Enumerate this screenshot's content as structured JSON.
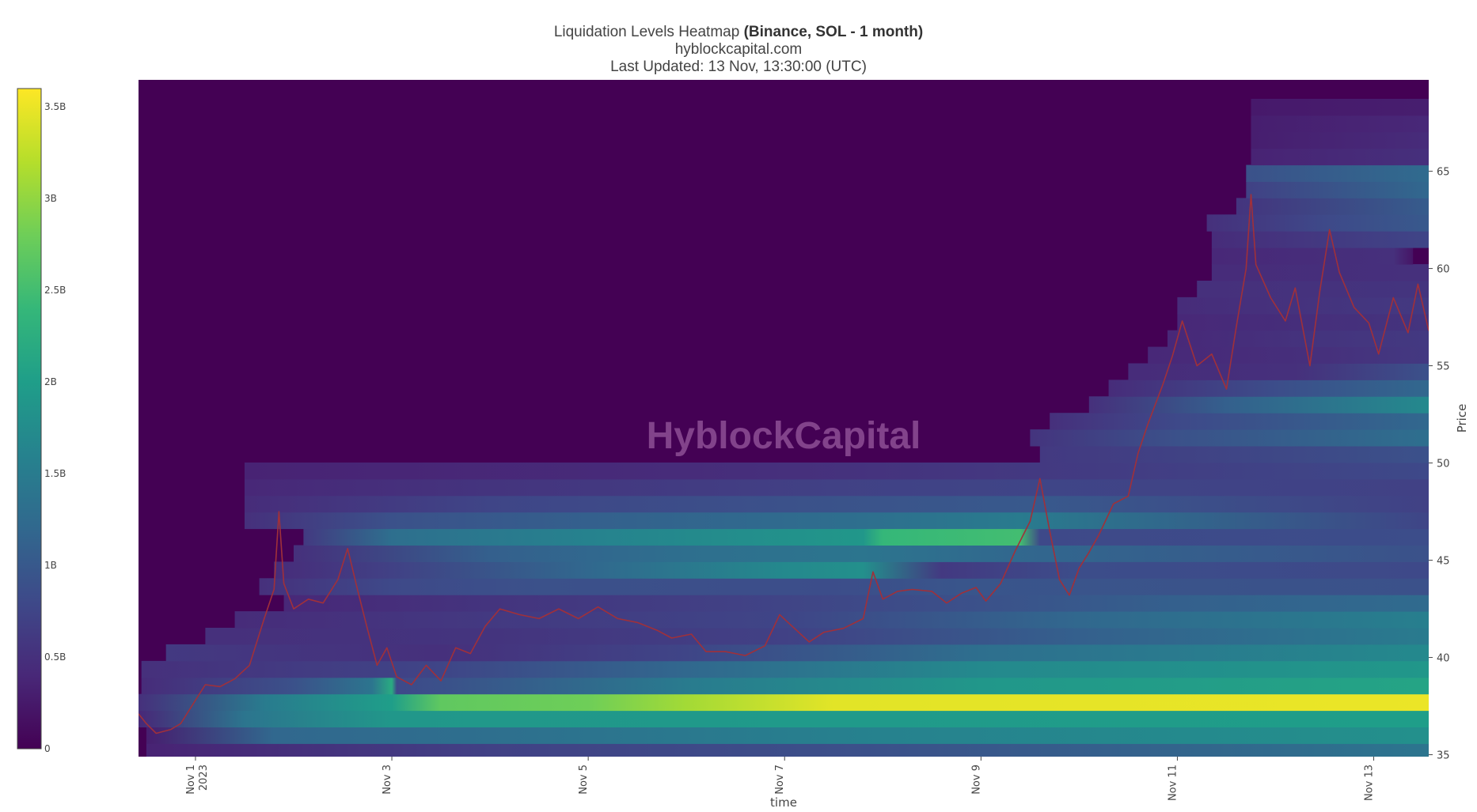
{
  "header": {
    "title_prefix": "Liquidation Levels Heatmap ",
    "title_bold": "(Binance, SOL - 1 month)",
    "site": "hyblockcapital.com",
    "updated": "Last Updated: 13 Nov, 13:30:00 (UTC)"
  },
  "watermark": "HyblockCapital",
  "colorscale": [
    "#440154",
    "#482878",
    "#3e4989",
    "#31688e",
    "#26828e",
    "#1f9e89",
    "#35b779",
    "#6ece58",
    "#b5de2b",
    "#fde725"
  ],
  "chart_data": {
    "type": "heatmap",
    "xlabel": "time",
    "ylabel": "Price",
    "x_ticks": [
      {
        "label": "Nov 1",
        "sub": "2023",
        "x": 1.0
      },
      {
        "label": "Nov 3",
        "sub": "",
        "x": 3.0
      },
      {
        "label": "Nov 5",
        "sub": "",
        "x": 5.0
      },
      {
        "label": "Nov 7",
        "sub": "",
        "x": 7.0
      },
      {
        "label": "Nov 9",
        "sub": "",
        "x": 9.0
      },
      {
        "label": "Nov 11",
        "sub": "",
        "x": 11.0
      },
      {
        "label": "Nov 13",
        "sub": "",
        "x": 13.0
      }
    ],
    "xlim": [
      0.42,
      13.56
    ],
    "ylim": [
      34.9,
      69.7
    ],
    "y_ticks": [
      35,
      40,
      45,
      50,
      55,
      60,
      65
    ],
    "colorbar": {
      "range": [
        0,
        3.6
      ],
      "ticks": [
        {
          "value": 0,
          "label": "0"
        },
        {
          "value": 0.5,
          "label": "0.5B"
        },
        {
          "value": 1,
          "label": "1B"
        },
        {
          "value": 1.5,
          "label": "1.5B"
        },
        {
          "value": 2,
          "label": "2B"
        },
        {
          "value": 2.5,
          "label": "2.5B"
        },
        {
          "value": 3,
          "label": "3B"
        },
        {
          "value": 3.5,
          "label": "3.5B"
        }
      ]
    },
    "bands": [
      {
        "price": 35.2,
        "start": 0.5,
        "points": [
          [
            0.5,
            0.35
          ],
          [
            4,
            0.7
          ],
          [
            8,
            0.9
          ],
          [
            13.56,
            1.4
          ]
        ]
      },
      {
        "price": 36.0,
        "start": 0.5,
        "points": [
          [
            0.5,
            0.3
          ],
          [
            1.8,
            1.2
          ],
          [
            4,
            1.3
          ],
          [
            8,
            1.6
          ],
          [
            13.56,
            1.8
          ]
        ]
      },
      {
        "price": 36.85,
        "start": 0.42,
        "points": [
          [
            0.42,
            0.4
          ],
          [
            1.5,
            1.4
          ],
          [
            3.0,
            1.9
          ],
          [
            13.56,
            2.0
          ]
        ]
      },
      {
        "price": 37.7,
        "start": 0.42,
        "points": [
          [
            0.42,
            0.5
          ],
          [
            1.7,
            1.5
          ],
          [
            3.0,
            2.0
          ],
          [
            3.5,
            2.7
          ],
          [
            5,
            2.8
          ],
          [
            6,
            3.1
          ],
          [
            7.5,
            3.45
          ],
          [
            13.56,
            3.5
          ]
        ]
      },
      {
        "price": 38.55,
        "start": 0.45,
        "points": [
          [
            0.45,
            0.45
          ],
          [
            2,
            0.9
          ],
          [
            2.8,
            1.4
          ],
          [
            3.0,
            2.2
          ],
          [
            3.05,
            0.8
          ],
          [
            6,
            1.5
          ],
          [
            9,
            1.9
          ],
          [
            13.56,
            2.1
          ]
        ]
      },
      {
        "price": 39.4,
        "start": 0.45,
        "points": [
          [
            0.45,
            0.5
          ],
          [
            3.5,
            0.75
          ],
          [
            6,
            1.2
          ],
          [
            9,
            1.7
          ],
          [
            13.56,
            1.9
          ]
        ]
      },
      {
        "price": 40.25,
        "start": 0.7,
        "points": [
          [
            0.7,
            0.6
          ],
          [
            3.5,
            0.5
          ],
          [
            6,
            0.75
          ],
          [
            9,
            1.3
          ],
          [
            13.56,
            1.7
          ]
        ]
      },
      {
        "price": 41.1,
        "start": 1.1,
        "points": [
          [
            1.1,
            0.5
          ],
          [
            4,
            0.55
          ],
          [
            7,
            0.7
          ],
          [
            10,
            1.1
          ],
          [
            13.56,
            1.5
          ]
        ]
      },
      {
        "price": 41.95,
        "start": 1.4,
        "points": [
          [
            1.4,
            0.45
          ],
          [
            4,
            0.6
          ],
          [
            7,
            0.75
          ],
          [
            10,
            1.2
          ],
          [
            13.56,
            1.55
          ]
        ]
      },
      {
        "price": 42.8,
        "start": 1.9,
        "points": [
          [
            1.9,
            0.4
          ],
          [
            4,
            0.55
          ],
          [
            6.5,
            0.7
          ],
          [
            9,
            0.9
          ],
          [
            11,
            1.1
          ],
          [
            13.56,
            1.25
          ]
        ]
      },
      {
        "price": 43.65,
        "start": 1.65,
        "points": [
          [
            1.65,
            0.5
          ],
          [
            3,
            0.8
          ],
          [
            4.5,
            0.9
          ],
          [
            7.5,
            0.85
          ],
          [
            8.8,
            0.95
          ],
          [
            13.56,
            0.9
          ]
        ]
      },
      {
        "price": 44.5,
        "start": 1.8,
        "points": [
          [
            1.8,
            0.45
          ],
          [
            3,
            0.7
          ],
          [
            5,
            1.2
          ],
          [
            7,
            1.7
          ],
          [
            7.8,
            1.8
          ],
          [
            8.6,
            0.6
          ],
          [
            10,
            0.85
          ],
          [
            13.56,
            0.8
          ]
        ]
      },
      {
        "price": 45.35,
        "start": 2.0,
        "points": [
          [
            2.0,
            0.5
          ],
          [
            4,
            1.1
          ],
          [
            6,
            1.3
          ],
          [
            7.8,
            1.4
          ],
          [
            9.3,
            1.2
          ],
          [
            13.56,
            0.9
          ]
        ]
      },
      {
        "price": 46.2,
        "start": 2.1,
        "points": [
          [
            2.1,
            0.6
          ],
          [
            3,
            1.3
          ],
          [
            5,
            1.6
          ],
          [
            7.8,
            1.9
          ],
          [
            8.0,
            2.4
          ],
          [
            9.4,
            2.5
          ],
          [
            9.6,
            0.8
          ],
          [
            13.56,
            0.85
          ]
        ]
      },
      {
        "price": 47.05,
        "start": 1.5,
        "points": [
          [
            1.5,
            0.5
          ],
          [
            3,
            0.9
          ],
          [
            5,
            1.1
          ],
          [
            7.8,
            1.3
          ],
          [
            9.4,
            1.5
          ],
          [
            13.56,
            0.75
          ]
        ]
      },
      {
        "price": 47.9,
        "start": 1.5,
        "points": [
          [
            1.5,
            0.45
          ],
          [
            4,
            0.75
          ],
          [
            7,
            0.9
          ],
          [
            9.5,
            1.0
          ],
          [
            13.56,
            0.7
          ]
        ]
      },
      {
        "price": 48.75,
        "start": 1.5,
        "points": [
          [
            1.5,
            0.4
          ],
          [
            4,
            0.55
          ],
          [
            7.5,
            0.7
          ],
          [
            9.6,
            0.75
          ],
          [
            13.56,
            0.7
          ]
        ]
      },
      {
        "price": 49.6,
        "start": 1.5,
        "points": [
          [
            1.5,
            0.35
          ],
          [
            6,
            0.45
          ],
          [
            9.6,
            0.6
          ],
          [
            13.56,
            0.8
          ]
        ]
      },
      {
        "price": 50.45,
        "start": 9.6,
        "points": [
          [
            9.6,
            0.6
          ],
          [
            13.56,
            0.9
          ]
        ]
      },
      {
        "price": 51.3,
        "start": 9.5,
        "points": [
          [
            9.5,
            0.55
          ],
          [
            11,
            0.9
          ],
          [
            13.56,
            1.3
          ]
        ]
      },
      {
        "price": 52.15,
        "start": 9.7,
        "points": [
          [
            9.7,
            0.5
          ],
          [
            11,
            0.8
          ],
          [
            13.56,
            1.2
          ]
        ]
      },
      {
        "price": 53.0,
        "start": 10.1,
        "points": [
          [
            10.1,
            0.5
          ],
          [
            11.5,
            1.1
          ],
          [
            13.56,
            1.7
          ]
        ]
      },
      {
        "price": 53.85,
        "start": 10.3,
        "points": [
          [
            10.3,
            0.45
          ],
          [
            12,
            0.85
          ],
          [
            13.56,
            1.2
          ]
        ]
      },
      {
        "price": 54.7,
        "start": 10.5,
        "points": [
          [
            10.5,
            0.45
          ],
          [
            12.2,
            0.5
          ],
          [
            13.56,
            0.9
          ]
        ]
      },
      {
        "price": 55.55,
        "start": 10.7,
        "points": [
          [
            10.7,
            0.4
          ],
          [
            12.5,
            0.5
          ],
          [
            13.56,
            0.6
          ]
        ]
      },
      {
        "price": 56.4,
        "start": 10.9,
        "points": [
          [
            10.9,
            0.4
          ],
          [
            12.5,
            0.55
          ],
          [
            13.56,
            0.6
          ]
        ]
      },
      {
        "price": 57.25,
        "start": 11.0,
        "points": [
          [
            11.0,
            0.4
          ],
          [
            13.56,
            0.55
          ]
        ]
      },
      {
        "price": 58.1,
        "start": 11.0,
        "points": [
          [
            11.0,
            0.45
          ],
          [
            13.56,
            0.6
          ]
        ]
      },
      {
        "price": 58.95,
        "start": 11.2,
        "points": [
          [
            11.2,
            0.5
          ],
          [
            13.56,
            0.55
          ]
        ]
      },
      {
        "price": 59.8,
        "start": 11.35,
        "points": [
          [
            11.35,
            0.45
          ],
          [
            13.56,
            0.5
          ]
        ]
      },
      {
        "price": 60.65,
        "start": 11.35,
        "points": [
          [
            11.35,
            0.4
          ],
          [
            13.2,
            0.5
          ],
          [
            13.4,
            0.2
          ]
        ]
      },
      {
        "price": 61.5,
        "start": 11.35,
        "points": [
          [
            11.35,
            0.45
          ],
          [
            12.5,
            0.6
          ],
          [
            13.56,
            0.75
          ]
        ]
      },
      {
        "price": 62.35,
        "start": 11.3,
        "points": [
          [
            11.3,
            0.5
          ],
          [
            12.5,
            0.8
          ],
          [
            13.56,
            1.0
          ]
        ]
      },
      {
        "price": 63.2,
        "start": 11.6,
        "points": [
          [
            11.6,
            0.55
          ],
          [
            13.56,
            1.05
          ]
        ]
      },
      {
        "price": 64.05,
        "start": 11.7,
        "points": [
          [
            11.7,
            0.7
          ],
          [
            13.56,
            1.2
          ]
        ]
      },
      {
        "price": 64.9,
        "start": 11.7,
        "points": [
          [
            11.7,
            0.9
          ],
          [
            13.56,
            1.25
          ]
        ]
      },
      {
        "price": 65.75,
        "start": 11.75,
        "points": [
          [
            11.75,
            0.35
          ],
          [
            13.56,
            0.5
          ]
        ]
      },
      {
        "price": 66.6,
        "start": 11.75,
        "points": [
          [
            11.75,
            0.3
          ],
          [
            13.56,
            0.45
          ]
        ]
      },
      {
        "price": 67.45,
        "start": 11.75,
        "points": [
          [
            11.75,
            0.3
          ],
          [
            13.56,
            0.4
          ]
        ]
      },
      {
        "price": 68.3,
        "start": 11.75,
        "points": [
          [
            11.75,
            0.25
          ],
          [
            13.56,
            0.3
          ]
        ]
      }
    ],
    "price_path": [
      [
        0.42,
        37.1
      ],
      [
        0.5,
        36.6
      ],
      [
        0.6,
        36.1
      ],
      [
        0.75,
        36.3
      ],
      [
        0.85,
        36.6
      ],
      [
        1.0,
        37.8
      ],
      [
        1.1,
        38.6
      ],
      [
        1.25,
        38.5
      ],
      [
        1.4,
        38.9
      ],
      [
        1.55,
        39.6
      ],
      [
        1.7,
        42.0
      ],
      [
        1.8,
        43.5
      ],
      [
        1.85,
        47.5
      ],
      [
        1.9,
        43.8
      ],
      [
        2.0,
        42.5
      ],
      [
        2.15,
        43.0
      ],
      [
        2.3,
        42.8
      ],
      [
        2.45,
        44.0
      ],
      [
        2.55,
        45.6
      ],
      [
        2.65,
        43.5
      ],
      [
        2.75,
        41.5
      ],
      [
        2.85,
        39.6
      ],
      [
        2.95,
        40.5
      ],
      [
        3.05,
        39.0
      ],
      [
        3.2,
        38.6
      ],
      [
        3.35,
        39.6
      ],
      [
        3.5,
        38.8
      ],
      [
        3.65,
        40.5
      ],
      [
        3.8,
        40.2
      ],
      [
        3.95,
        41.6
      ],
      [
        4.1,
        42.5
      ],
      [
        4.3,
        42.2
      ],
      [
        4.5,
        42.0
      ],
      [
        4.7,
        42.5
      ],
      [
        4.9,
        42.0
      ],
      [
        5.1,
        42.6
      ],
      [
        5.3,
        42.0
      ],
      [
        5.5,
        41.8
      ],
      [
        5.7,
        41.4
      ],
      [
        5.85,
        41.0
      ],
      [
        6.05,
        41.2
      ],
      [
        6.2,
        40.3
      ],
      [
        6.4,
        40.3
      ],
      [
        6.6,
        40.1
      ],
      [
        6.8,
        40.6
      ],
      [
        6.95,
        42.2
      ],
      [
        7.1,
        41.5
      ],
      [
        7.25,
        40.8
      ],
      [
        7.4,
        41.3
      ],
      [
        7.6,
        41.5
      ],
      [
        7.8,
        42.0
      ],
      [
        7.9,
        44.4
      ],
      [
        8.0,
        43.0
      ],
      [
        8.15,
        43.4
      ],
      [
        8.3,
        43.5
      ],
      [
        8.5,
        43.4
      ],
      [
        8.65,
        42.8
      ],
      [
        8.8,
        43.3
      ],
      [
        8.95,
        43.6
      ],
      [
        9.05,
        42.9
      ],
      [
        9.2,
        43.8
      ],
      [
        9.35,
        45.5
      ],
      [
        9.5,
        47.0
      ],
      [
        9.6,
        49.2
      ],
      [
        9.7,
        46.5
      ],
      [
        9.8,
        44.0
      ],
      [
        9.9,
        43.2
      ],
      [
        10.0,
        44.6
      ],
      [
        10.1,
        45.4
      ],
      [
        10.2,
        46.3
      ],
      [
        10.35,
        47.9
      ],
      [
        10.5,
        48.3
      ],
      [
        10.6,
        50.5
      ],
      [
        10.7,
        52.0
      ],
      [
        10.85,
        54.0
      ],
      [
        10.95,
        55.5
      ],
      [
        11.05,
        57.3
      ],
      [
        11.2,
        55.0
      ],
      [
        11.35,
        55.6
      ],
      [
        11.5,
        53.8
      ],
      [
        11.6,
        57.0
      ],
      [
        11.7,
        60.0
      ],
      [
        11.75,
        63.8
      ],
      [
        11.8,
        60.2
      ],
      [
        11.95,
        58.5
      ],
      [
        12.1,
        57.3
      ],
      [
        12.2,
        59.0
      ],
      [
        12.35,
        55.0
      ],
      [
        12.45,
        58.8
      ],
      [
        12.55,
        62.0
      ],
      [
        12.65,
        59.8
      ],
      [
        12.8,
        58.0
      ],
      [
        12.95,
        57.2
      ],
      [
        13.05,
        55.6
      ],
      [
        13.2,
        58.5
      ],
      [
        13.35,
        56.7
      ],
      [
        13.45,
        59.2
      ],
      [
        13.56,
        56.8
      ]
    ]
  }
}
